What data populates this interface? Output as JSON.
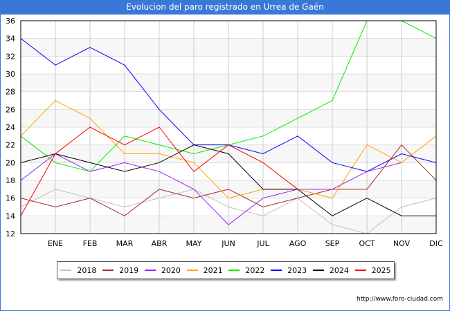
{
  "title": "Evolucion del paro registrado en Urrea de Gaén",
  "footer_url": "http://www.foro-ciudad.com",
  "chart_data": {
    "type": "line",
    "title": "Evolucion del paro registrado en Urrea de Gaén",
    "categories": [
      "",
      "ENE",
      "FEB",
      "MAR",
      "ABR",
      "MAY",
      "JUN",
      "JUL",
      "AGO",
      "SEP",
      "OCT",
      "NOV",
      "DIC"
    ],
    "ylim": [
      12,
      36
    ],
    "yticks": [
      12,
      14,
      16,
      18,
      20,
      22,
      24,
      26,
      28,
      30,
      32,
      34,
      36
    ],
    "grid": true,
    "legend_position": "bottom",
    "series": [
      {
        "name": "2018",
        "color": "#c0c0c0",
        "values": [
          15,
          17,
          16,
          15,
          16,
          17,
          15,
          14,
          16,
          13,
          12,
          15,
          16
        ]
      },
      {
        "name": "2019",
        "color": "#a52a2a",
        "values": [
          16,
          15,
          16,
          14,
          17,
          16,
          17,
          15,
          16,
          17,
          17,
          22,
          18
        ]
      },
      {
        "name": "2020",
        "color": "#a020f0",
        "values": [
          18,
          21,
          19,
          20,
          19,
          17,
          13,
          16,
          17,
          17,
          19,
          20,
          null
        ]
      },
      {
        "name": "2021",
        "color": "#ffa500",
        "values": [
          23,
          27,
          25,
          21,
          21,
          20,
          16,
          17,
          17,
          16,
          22,
          20,
          23
        ]
      },
      {
        "name": "2022",
        "color": "#00ee00",
        "values": [
          23,
          20,
          19,
          23,
          22,
          21,
          22,
          23,
          25,
          27,
          36,
          36,
          34
        ]
      },
      {
        "name": "2023",
        "color": "#0000ff",
        "values": [
          34,
          31,
          33,
          31,
          26,
          22,
          22,
          21,
          23,
          20,
          19,
          21,
          20
        ]
      },
      {
        "name": "2024",
        "color": "#000000",
        "values": [
          20,
          21,
          20,
          19,
          20,
          22,
          21,
          17,
          17,
          14,
          16,
          14,
          14
        ]
      },
      {
        "name": "2025",
        "color": "#ff0000",
        "values": [
          14,
          21,
          24,
          22,
          24,
          19,
          22,
          20,
          17,
          null,
          null,
          null,
          null
        ]
      }
    ]
  }
}
